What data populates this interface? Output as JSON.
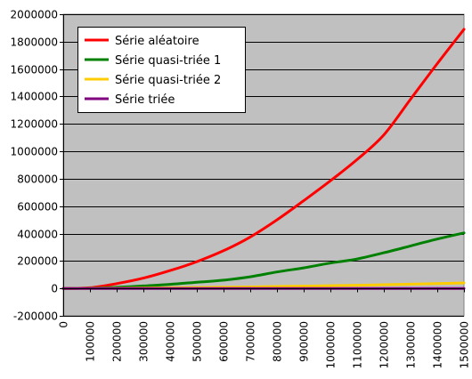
{
  "chart_data": {
    "type": "line",
    "title": "",
    "xlabel": "",
    "ylabel": "",
    "xlim": [
      0,
      1500000
    ],
    "ylim": [
      -200000,
      2000000
    ],
    "grid": true,
    "legend_position": "top-left",
    "colors": {
      "plot_background": "#c0c0c0",
      "gridlines": "#000000",
      "legend_background": "#ffffff"
    },
    "x_ticks": [
      0,
      100000,
      200000,
      300000,
      400000,
      500000,
      600000,
      700000,
      800000,
      900000,
      1000000,
      1100000,
      1200000,
      1300000,
      1400000,
      1500000
    ],
    "x_tick_labels": [
      "0",
      "100000",
      "200000",
      "300000",
      "400000",
      "500000",
      "600000",
      "700000",
      "800000",
      "900000",
      "1000000",
      "1100000",
      "1200000",
      "1300000",
      "1400000",
      "1500000"
    ],
    "y_ticks": [
      -200000,
      0,
      200000,
      400000,
      600000,
      800000,
      1000000,
      1200000,
      1400000,
      1600000,
      1800000,
      2000000
    ],
    "y_tick_labels": [
      "-200000",
      "0",
      "200000",
      "400000",
      "600000",
      "800000",
      "1000000",
      "1200000",
      "1400000",
      "1600000",
      "1800000",
      "2000000"
    ],
    "x": [
      0,
      100000,
      200000,
      300000,
      400000,
      500000,
      600000,
      700000,
      800000,
      900000,
      1000000,
      1100000,
      1200000,
      1300000,
      1400000,
      1500000
    ],
    "series": [
      {
        "name": "Série aléatoire",
        "color": "#ff0000",
        "values": [
          0,
          5000,
          35000,
          75000,
          130000,
          195000,
          275000,
          375000,
          500000,
          640000,
          785000,
          940000,
          1120000,
          1380000,
          1640000,
          1890000
        ]
      },
      {
        "name": "Série quasi-triée 1",
        "color": "#008000",
        "values": [
          0,
          2000,
          8000,
          18000,
          30000,
          45000,
          60000,
          85000,
          120000,
          150000,
          185000,
          215000,
          260000,
          310000,
          360000,
          405000
        ]
      },
      {
        "name": "Série quasi-triée 2",
        "color": "#ffcc00",
        "values": [
          0,
          500,
          1500,
          3000,
          5000,
          7000,
          9000,
          11000,
          14000,
          17000,
          20000,
          23000,
          27000,
          31000,
          35000,
          40000
        ]
      },
      {
        "name": "Série triée",
        "color": "#800080",
        "values": [
          0,
          0,
          0,
          0,
          0,
          0,
          0,
          0,
          0,
          0,
          0,
          0,
          0,
          0,
          0,
          0
        ]
      }
    ]
  }
}
